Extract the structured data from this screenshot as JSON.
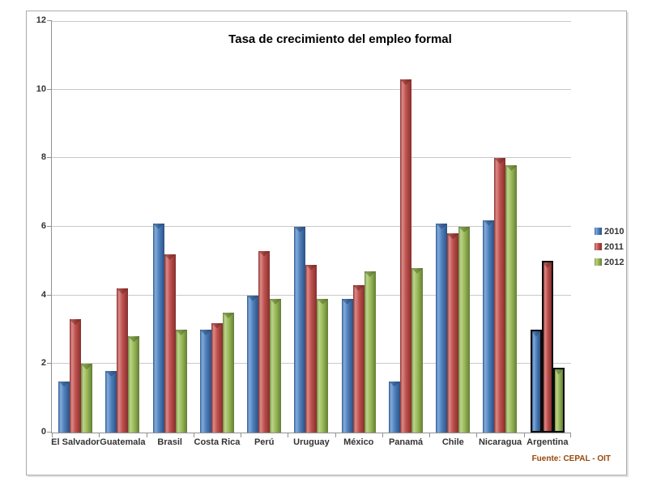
{
  "chart_data": {
    "type": "bar",
    "title": "Tasa de crecimiento del empleo formal",
    "categories": [
      "El Salvador",
      "Guatemala",
      "Brasil",
      "Costa Rica",
      "Perú",
      "Uruguay",
      "México",
      "Panamá",
      "Chile",
      "Nicaragua",
      "Argentina"
    ],
    "series": [
      {
        "name": "2010",
        "color": "#4F81BD",
        "values": [
          1.5,
          1.8,
          6.1,
          3.0,
          4.0,
          6.0,
          3.9,
          1.5,
          6.1,
          6.2,
          3.0
        ]
      },
      {
        "name": "2011",
        "color": "#C0504D",
        "values": [
          3.3,
          4.2,
          5.2,
          3.2,
          5.3,
          4.9,
          4.3,
          10.3,
          5.8,
          8.0,
          5.0
        ]
      },
      {
        "name": "2012",
        "color": "#9BBB59",
        "values": [
          2.0,
          2.8,
          3.0,
          3.5,
          3.9,
          3.9,
          4.7,
          4.8,
          6.0,
          7.8,
          1.9
        ]
      }
    ],
    "highlighted_category": "Argentina",
    "ylim": [
      0,
      12
    ],
    "yticks": [
      0,
      2,
      4,
      6,
      8,
      10,
      12
    ],
    "grid": true,
    "legend_position": "right",
    "source_note": "Fuente: CEPAL - OIT"
  }
}
